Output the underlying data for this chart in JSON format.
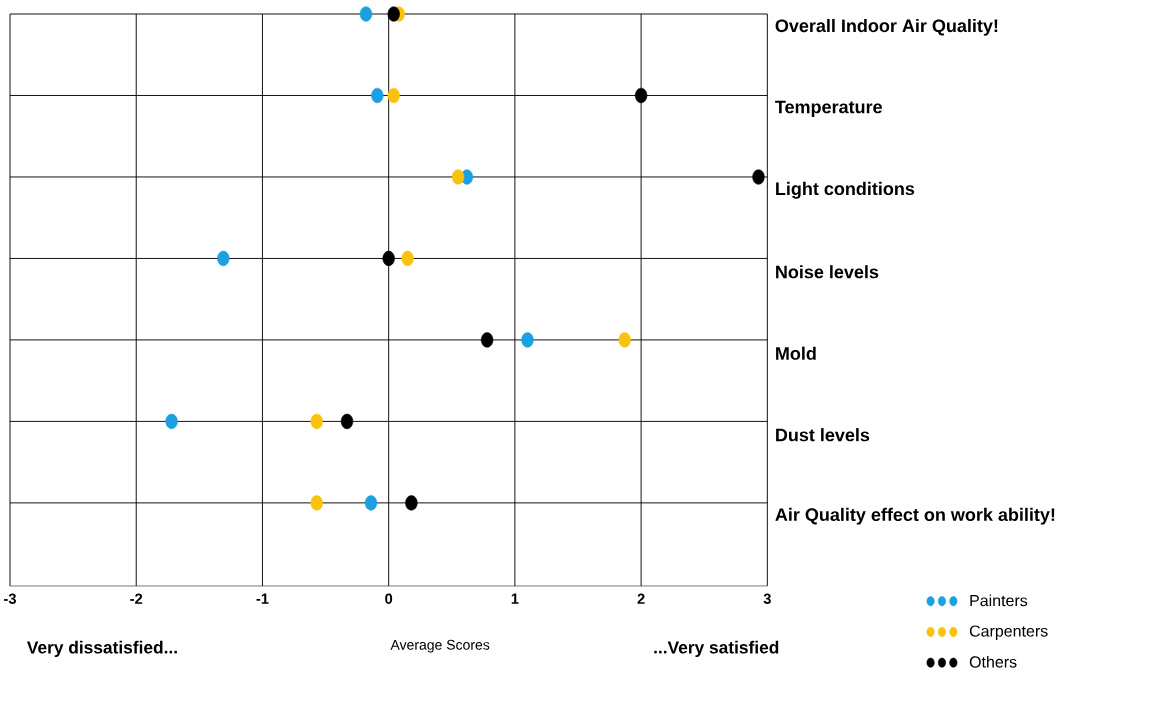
{
  "chart_data": {
    "type": "scatter",
    "categories": [
      "Overall Indoor Air Quality!",
      "Temperature",
      "Light conditions",
      "Noise levels",
      "Mold",
      "Dust levels",
      "Air Quality effect on work ability!"
    ],
    "orientation": "horizontal",
    "series": [
      {
        "name": "Painters",
        "color": "#1ba1e2",
        "values": [
          -0.18,
          -0.09,
          0.62,
          -1.31,
          1.1,
          -1.72,
          -0.14
        ]
      },
      {
        "name": "Carpenters",
        "color": "#f9c20f",
        "values": [
          0.08,
          0.04,
          0.55,
          0.15,
          1.87,
          -0.57,
          -0.57
        ]
      },
      {
        "name": "Others",
        "color": "#000000",
        "values": [
          0.04,
          2.0,
          2.93,
          0.0,
          0.78,
          -0.33,
          0.18
        ]
      }
    ],
    "xlim": [
      -3,
      3
    ],
    "xticks": [
      -3,
      -2,
      -1,
      0,
      1,
      2,
      3
    ],
    "xlabel": "Average Scores",
    "annotations": [
      "Very dissatisfied...",
      "...Very satisfied"
    ],
    "grid": true,
    "legend": "bottom right",
    "marker": "circle"
  }
}
